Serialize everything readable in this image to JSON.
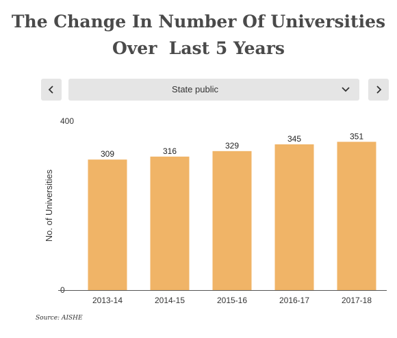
{
  "title": {
    "line1": "The Change In Number Of Universities",
    "line2": "Over  Last 5 Years"
  },
  "controls": {
    "prev_icon": "chevron-left-icon",
    "next_icon": "chevron-right-icon",
    "dropdown_icon": "chevron-down-icon",
    "selected": "State public"
  },
  "chart_data": {
    "type": "bar",
    "categories": [
      "2013-14",
      "2014-15",
      "2015-16",
      "2016-17",
      "2017-18"
    ],
    "values": [
      309,
      316,
      329,
      345,
      351
    ],
    "title": "",
    "xlabel": "",
    "ylabel": "No. of Universities",
    "ylim": [
      0,
      400
    ],
    "yticks": [
      0,
      400
    ],
    "bar_color": "#f0b467",
    "data_labels": true,
    "grid": false
  },
  "source": "Source: AISHE"
}
